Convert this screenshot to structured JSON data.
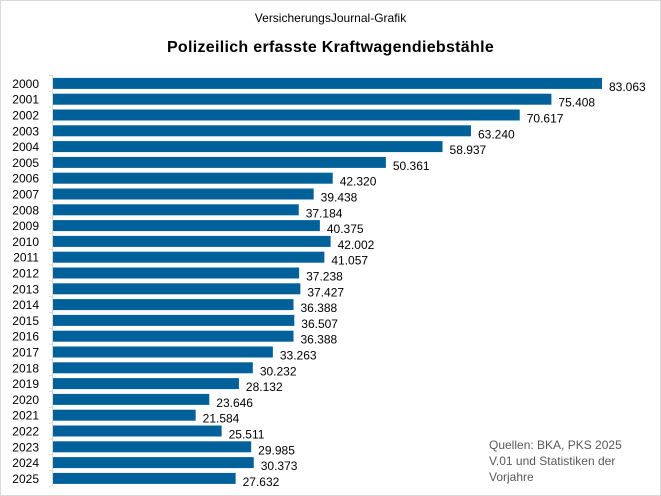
{
  "chart_data": {
    "type": "bar",
    "orientation": "horizontal",
    "subtitle": "VersicherungsJournal-Grafik",
    "title": "Polizeilich erfasste Kraftwagendiebstähle",
    "categories": [
      "2000",
      "2001",
      "2002",
      "2003",
      "2004",
      "2005",
      "2006",
      "2007",
      "2008",
      "2009",
      "2010",
      "2011",
      "2012",
      "2013",
      "2014",
      "2015",
      "2016",
      "2017",
      "2018",
      "2019",
      "2020",
      "2021",
      "2022",
      "2023",
      "2024",
      "2025"
    ],
    "values": [
      83063,
      75408,
      70617,
      63240,
      58937,
      50361,
      42320,
      39438,
      37184,
      40375,
      42002,
      41057,
      37238,
      37427,
      36388,
      36507,
      36388,
      33263,
      30232,
      28132,
      23646,
      21584,
      25511,
      29985,
      30373,
      27632
    ],
    "data_labels": [
      "83.063",
      "75.408",
      "70.617",
      "63.240",
      "58.937",
      "50.361",
      "42.320",
      "39.438",
      "37.184",
      "40.375",
      "42.002",
      "41.057",
      "37.238",
      "37.427",
      "36.388",
      "36.507",
      "36.388",
      "33.263",
      "30.232",
      "28.132",
      "23.646",
      "21.584",
      "25.511",
      "29.985",
      "30.373",
      "27.632"
    ],
    "source": "Quellen: BKA, PKS 2025\nV.01 und Statistiken der\nVorjahre",
    "bar_color": "#00619A",
    "grid": false,
    "legend": "none"
  }
}
